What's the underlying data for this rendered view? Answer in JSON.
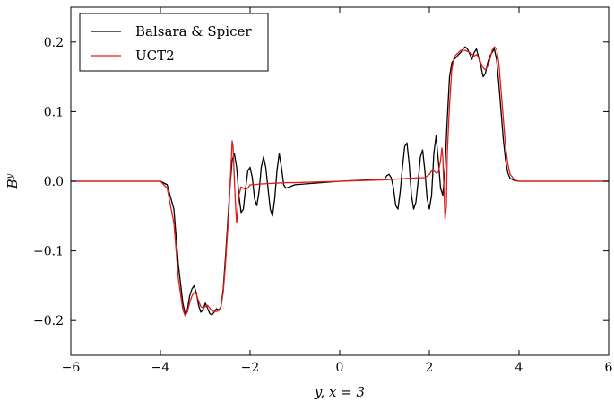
{
  "chart_data": {
    "type": "line",
    "title": "",
    "xlabel": "y,  x = 3",
    "ylabel": "B^y",
    "ylabel_main": "B",
    "ylabel_sup": "y",
    "xlim": [
      -6,
      6
    ],
    "ylim": [
      -0.25,
      0.25
    ],
    "xticks": [
      -6,
      -4,
      -2,
      0,
      2,
      4,
      6
    ],
    "xtick_labels": [
      "−6",
      "−4",
      "−2",
      "0",
      "2",
      "4",
      "6"
    ],
    "yticks": [
      -0.2,
      -0.1,
      0.0,
      0.1,
      0.2
    ],
    "ytick_labels": [
      "−0.2",
      "−0.1",
      "0.0",
      "0.1",
      "0.2"
    ],
    "grid": false,
    "legend_position": "top-left",
    "series": [
      {
        "name": "Balsara & Spicer",
        "color": "#000000",
        "x": [
          -6,
          -4.0,
          -3.85,
          -3.7,
          -3.6,
          -3.5,
          -3.45,
          -3.4,
          -3.35,
          -3.3,
          -3.25,
          -3.2,
          -3.15,
          -3.1,
          -3.05,
          -3.0,
          -2.95,
          -2.9,
          -2.85,
          -2.8,
          -2.75,
          -2.7,
          -2.65,
          -2.6,
          -2.55,
          -2.5,
          -2.45,
          -2.4,
          -2.35,
          -2.3,
          -2.25,
          -2.2,
          -2.15,
          -2.1,
          -2.05,
          -2.0,
          -1.95,
          -1.9,
          -1.85,
          -1.8,
          -1.75,
          -1.7,
          -1.65,
          -1.6,
          -1.55,
          -1.5,
          -1.45,
          -1.4,
          -1.35,
          -1.3,
          -1.25,
          -1.2,
          -1.0,
          0.0,
          1.0,
          1.05,
          1.1,
          1.15,
          1.2,
          1.25,
          1.3,
          1.35,
          1.4,
          1.45,
          1.5,
          1.55,
          1.6,
          1.65,
          1.7,
          1.75,
          1.8,
          1.85,
          1.9,
          1.95,
          2.0,
          2.05,
          2.1,
          2.15,
          2.2,
          2.25,
          2.3,
          2.35,
          2.4,
          2.45,
          2.5,
          2.55,
          2.6,
          2.65,
          2.7,
          2.75,
          2.8,
          2.85,
          2.9,
          2.95,
          3.0,
          3.05,
          3.1,
          3.15,
          3.2,
          3.25,
          3.3,
          3.35,
          3.4,
          3.45,
          3.5,
          3.55,
          3.6,
          3.65,
          3.7,
          3.75,
          3.8,
          3.9,
          4.0,
          4.1,
          6
        ],
        "y": [
          0.0,
          0.0,
          -0.005,
          -0.04,
          -0.12,
          -0.175,
          -0.19,
          -0.185,
          -0.165,
          -0.155,
          -0.15,
          -0.16,
          -0.178,
          -0.188,
          -0.185,
          -0.175,
          -0.182,
          -0.19,
          -0.192,
          -0.188,
          -0.183,
          -0.185,
          -0.18,
          -0.155,
          -0.11,
          -0.06,
          -0.01,
          0.03,
          0.04,
          0.02,
          -0.02,
          -0.045,
          -0.04,
          -0.01,
          0.015,
          0.02,
          0.005,
          -0.025,
          -0.035,
          -0.015,
          0.02,
          0.035,
          0.02,
          -0.01,
          -0.04,
          -0.05,
          -0.025,
          0.015,
          0.04,
          0.02,
          -0.005,
          -0.01,
          -0.005,
          0.0,
          0.003,
          0.008,
          0.01,
          0.005,
          -0.01,
          -0.035,
          -0.04,
          -0.015,
          0.02,
          0.05,
          0.055,
          0.025,
          -0.02,
          -0.04,
          -0.03,
          0.0,
          0.035,
          0.045,
          0.015,
          -0.025,
          -0.04,
          -0.02,
          0.04,
          0.065,
          0.03,
          -0.01,
          -0.02,
          0.02,
          0.09,
          0.15,
          0.17,
          0.175,
          0.178,
          0.182,
          0.185,
          0.19,
          0.193,
          0.19,
          0.183,
          0.175,
          0.185,
          0.19,
          0.178,
          0.165,
          0.15,
          0.155,
          0.17,
          0.18,
          0.185,
          0.19,
          0.175,
          0.14,
          0.1,
          0.06,
          0.03,
          0.012,
          0.004,
          0.001,
          0.0,
          0.0,
          0.0
        ]
      },
      {
        "name": "UCT2",
        "color": "#e31a1c",
        "x": [
          -6,
          -4.0,
          -3.85,
          -3.7,
          -3.6,
          -3.5,
          -3.45,
          -3.4,
          -3.35,
          -3.3,
          -3.25,
          -3.2,
          -3.15,
          -3.1,
          -3.05,
          -3.0,
          -2.95,
          -2.9,
          -2.85,
          -2.8,
          -2.75,
          -2.7,
          -2.65,
          -2.6,
          -2.55,
          -2.5,
          -2.47,
          -2.45,
          -2.42,
          -2.4,
          -2.38,
          -2.35,
          -2.32,
          -2.3,
          -2.25,
          -2.2,
          -2.15,
          -2.1,
          -2.05,
          -2.0,
          -1.95,
          -1.9,
          -1.8,
          -1.5,
          -1.2,
          -1.0,
          0.0,
          1.0,
          1.5,
          1.8,
          1.9,
          2.0,
          2.05,
          2.1,
          2.15,
          2.2,
          2.25,
          2.28,
          2.3,
          2.33,
          2.35,
          2.38,
          2.4,
          2.45,
          2.5,
          2.55,
          2.6,
          2.65,
          2.7,
          2.8,
          2.9,
          3.0,
          3.05,
          3.1,
          3.15,
          3.2,
          3.25,
          3.3,
          3.35,
          3.4,
          3.45,
          3.5,
          3.55,
          3.6,
          3.65,
          3.7,
          3.75,
          3.8,
          3.9,
          4.0,
          6
        ],
        "y": [
          0.0,
          0.0,
          -0.01,
          -0.06,
          -0.14,
          -0.185,
          -0.193,
          -0.188,
          -0.175,
          -0.165,
          -0.16,
          -0.162,
          -0.172,
          -0.18,
          -0.182,
          -0.18,
          -0.178,
          -0.182,
          -0.186,
          -0.187,
          -0.187,
          -0.186,
          -0.18,
          -0.16,
          -0.12,
          -0.07,
          -0.04,
          -0.01,
          0.03,
          0.058,
          0.05,
          0.0,
          -0.04,
          -0.06,
          -0.02,
          -0.008,
          -0.01,
          -0.012,
          -0.01,
          -0.005,
          -0.005,
          -0.005,
          -0.004,
          -0.003,
          -0.002,
          -0.002,
          0.0,
          0.002,
          0.004,
          0.005,
          0.005,
          0.01,
          0.015,
          0.015,
          0.012,
          0.013,
          0.03,
          0.048,
          0.035,
          -0.02,
          -0.055,
          -0.035,
          0.04,
          0.11,
          0.16,
          0.178,
          0.182,
          0.185,
          0.188,
          0.188,
          0.185,
          0.18,
          0.182,
          0.178,
          0.17,
          0.163,
          0.16,
          0.165,
          0.175,
          0.188,
          0.193,
          0.19,
          0.17,
          0.13,
          0.09,
          0.05,
          0.025,
          0.01,
          0.002,
          0.0,
          0.0
        ]
      }
    ]
  }
}
